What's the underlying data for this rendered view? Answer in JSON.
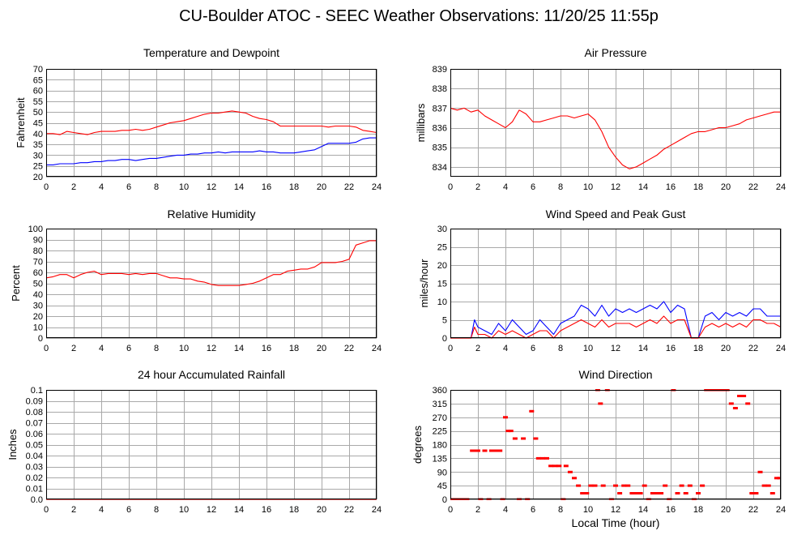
{
  "title": "CU-Boulder ATOC - SEEC Weather Observations: 11/20/25 11:55p",
  "x_axis_label": "Local Time (hour)",
  "colors": {
    "primary": "#ff0000",
    "secondary": "#0000ff",
    "grid": "#a9a9a9"
  },
  "chart_data": [
    {
      "id": "temperature",
      "type": "line",
      "title": "Temperature and Dewpoint",
      "ylabel": "Fahrenheit",
      "xlim": [
        0,
        24
      ],
      "ylim": [
        20,
        70
      ],
      "xticks": [
        "0",
        "2",
        "4",
        "6",
        "8",
        "10",
        "12",
        "14",
        "16",
        "18",
        "20",
        "22",
        "24"
      ],
      "yticks": [
        "20",
        "25",
        "30",
        "35",
        "40",
        "45",
        "50",
        "55",
        "60",
        "65",
        "70"
      ],
      "series": [
        {
          "color": "#ff0000",
          "x": [
            0,
            0.5,
            1,
            1.5,
            2,
            2.5,
            3,
            3.5,
            4,
            4.5,
            5,
            5.5,
            6,
            6.5,
            7,
            7.5,
            8,
            8.5,
            9,
            9.5,
            10,
            10.5,
            11,
            11.5,
            12,
            12.5,
            13,
            13.5,
            14,
            14.5,
            15,
            15.5,
            16,
            16.5,
            17,
            17.5,
            18,
            18.5,
            19,
            19.5,
            20,
            20.5,
            21,
            21.5,
            22,
            22.5,
            23,
            23.5,
            24
          ],
          "values": [
            40,
            40,
            39.5,
            41,
            40.5,
            40,
            39.5,
            40.5,
            41,
            41,
            41,
            41.5,
            41.5,
            42,
            41.5,
            42,
            43,
            44,
            45,
            45.5,
            46,
            47,
            48,
            49,
            49.5,
            49.5,
            50,
            50.5,
            50,
            49.5,
            48,
            47,
            46.5,
            45.5,
            43.5,
            43.5,
            43.5,
            43.5,
            43.5,
            43.5,
            43.5,
            43,
            43.5,
            43.5,
            43.5,
            43,
            41.5,
            41,
            40.5
          ]
        },
        {
          "color": "#0000ff",
          "x": [
            0,
            0.5,
            1,
            1.5,
            2,
            2.5,
            3,
            3.5,
            4,
            4.5,
            5,
            5.5,
            6,
            6.5,
            7,
            7.5,
            8,
            8.5,
            9,
            9.5,
            10,
            10.5,
            11,
            11.5,
            12,
            12.5,
            13,
            13.5,
            14,
            14.5,
            15,
            15.5,
            16,
            16.5,
            17,
            17.5,
            18,
            18.5,
            19,
            19.5,
            20,
            20.5,
            21,
            21.5,
            22,
            22.5,
            23,
            23.5,
            24
          ],
          "values": [
            25.5,
            25.5,
            26,
            26,
            26,
            26.5,
            26.5,
            27,
            27,
            27.5,
            27.5,
            28,
            28,
            27.5,
            28,
            28.5,
            28.5,
            29,
            29.5,
            30,
            30,
            30.5,
            30.5,
            31,
            31,
            31.5,
            31,
            31.5,
            31.5,
            31.5,
            31.5,
            32,
            31.5,
            31.5,
            31,
            31,
            31,
            31.5,
            32,
            32.5,
            34,
            35.5,
            35.5,
            35.5,
            35.5,
            36,
            37.5,
            38,
            38
          ]
        }
      ]
    },
    {
      "id": "pressure",
      "type": "line",
      "title": "Air Pressure",
      "ylabel": "millibars",
      "xlim": [
        0,
        24
      ],
      "ylim": [
        833.5,
        839
      ],
      "xticks": [
        "0",
        "2",
        "4",
        "6",
        "8",
        "10",
        "12",
        "14",
        "16",
        "18",
        "20",
        "22",
        "24"
      ],
      "yticks": [
        "834",
        "835",
        "836",
        "837",
        "838",
        "839"
      ],
      "series": [
        {
          "color": "#ff0000",
          "x": [
            0,
            0.5,
            1,
            1.5,
            2,
            2.5,
            3,
            3.5,
            4,
            4.5,
            5,
            5.5,
            6,
            6.5,
            7,
            7.5,
            8,
            8.5,
            9,
            9.5,
            10,
            10.5,
            11,
            11.5,
            12,
            12.5,
            13,
            13.5,
            14,
            14.5,
            15,
            15.5,
            16,
            16.5,
            17,
            17.5,
            18,
            18.5,
            19,
            19.5,
            20,
            20.5,
            21,
            21.5,
            22,
            22.5,
            23,
            23.5,
            24
          ],
          "values": [
            837,
            836.9,
            837,
            836.8,
            836.9,
            836.6,
            836.4,
            836.2,
            836,
            836.3,
            836.9,
            836.7,
            836.3,
            836.3,
            836.4,
            836.5,
            836.6,
            836.6,
            836.5,
            836.6,
            836.7,
            836.4,
            835.8,
            835,
            834.5,
            834.1,
            833.9,
            834,
            834.2,
            834.4,
            834.6,
            834.9,
            835.1,
            835.3,
            835.5,
            835.7,
            835.8,
            835.8,
            835.9,
            836,
            836,
            836.1,
            836.2,
            836.4,
            836.5,
            836.6,
            836.7,
            836.8,
            836.8
          ]
        }
      ]
    },
    {
      "id": "humidity",
      "type": "line",
      "title": "Relative Humidity",
      "ylabel": "Percent",
      "xlim": [
        0,
        24
      ],
      "ylim": [
        0,
        100
      ],
      "xticks": [
        "0",
        "2",
        "4",
        "6",
        "8",
        "10",
        "12",
        "14",
        "16",
        "18",
        "20",
        "22",
        "24"
      ],
      "yticks": [
        "0",
        "10",
        "20",
        "30",
        "40",
        "50",
        "60",
        "70",
        "80",
        "90",
        "100"
      ],
      "series": [
        {
          "color": "#ff0000",
          "x": [
            0,
            0.5,
            1,
            1.5,
            2,
            2.5,
            3,
            3.5,
            4,
            4.5,
            5,
            5.5,
            6,
            6.5,
            7,
            7.5,
            8,
            8.5,
            9,
            9.5,
            10,
            10.5,
            11,
            11.5,
            12,
            12.5,
            13,
            13.5,
            14,
            14.5,
            15,
            15.5,
            16,
            16.5,
            17,
            17.5,
            18,
            18.5,
            19,
            19.5,
            20,
            20.5,
            21,
            21.5,
            22,
            22.5,
            23,
            23.5,
            24
          ],
          "values": [
            55,
            56,
            58,
            58,
            55,
            58,
            60,
            61,
            58,
            59,
            59,
            59,
            58,
            59,
            58,
            59,
            59,
            57,
            55,
            55,
            54,
            54,
            52,
            51,
            49,
            48,
            48,
            48,
            48,
            49,
            50,
            52,
            55,
            58,
            58,
            61,
            62,
            63,
            63,
            65,
            69,
            69,
            69,
            70,
            72,
            85,
            87,
            89,
            89
          ]
        }
      ]
    },
    {
      "id": "wind-speed",
      "type": "line",
      "title": "Wind Speed and Peak Gust",
      "ylabel": "miles/hour",
      "xlim": [
        0,
        24
      ],
      "ylim": [
        0,
        30
      ],
      "xticks": [
        "0",
        "2",
        "4",
        "6",
        "8",
        "10",
        "12",
        "14",
        "16",
        "18",
        "20",
        "22",
        "24"
      ],
      "yticks": [
        "0",
        "5",
        "10",
        "15",
        "20",
        "25",
        "30"
      ],
      "series": [
        {
          "color": "#0000ff",
          "x": [
            0,
            0.5,
            1,
            1.5,
            1.75,
            2,
            2.5,
            3,
            3.5,
            4,
            4.5,
            5,
            5.5,
            6,
            6.5,
            7,
            7.5,
            8,
            8.5,
            9,
            9.5,
            10,
            10.5,
            11,
            11.5,
            12,
            12.5,
            13,
            13.5,
            14,
            14.5,
            15,
            15.5,
            16,
            16.5,
            17,
            17.5,
            18,
            18.5,
            19,
            19.5,
            20,
            20.5,
            21,
            21.5,
            22,
            22.5,
            23,
            23.5,
            24
          ],
          "values": [
            0,
            0,
            0,
            0,
            5,
            3,
            2,
            1,
            4,
            2,
            5,
            3,
            1,
            2,
            5,
            3,
            1,
            4,
            5,
            6,
            9,
            8,
            6,
            9,
            6,
            8,
            7,
            8,
            7,
            8,
            9,
            8,
            10,
            7,
            9,
            8,
            0,
            0,
            6,
            7,
            5,
            7,
            6,
            7,
            6,
            8,
            8,
            6,
            6,
            6
          ]
        },
        {
          "color": "#ff0000",
          "x": [
            0,
            0.5,
            1,
            1.5,
            1.75,
            2,
            2.5,
            3,
            3.5,
            4,
            4.5,
            5,
            5.5,
            6,
            6.5,
            7,
            7.5,
            8,
            8.5,
            9,
            9.5,
            10,
            10.5,
            11,
            11.5,
            12,
            12.5,
            13,
            13.5,
            14,
            14.5,
            15,
            15.5,
            16,
            16.5,
            17,
            17.5,
            18,
            18.5,
            19,
            19.5,
            20,
            20.5,
            21,
            21.5,
            22,
            22.5,
            23,
            23.5,
            24
          ],
          "values": [
            0,
            0,
            0,
            0,
            3,
            1,
            1,
            0,
            2,
            1,
            2,
            1,
            0,
            1,
            2,
            2,
            0,
            2,
            3,
            4,
            5,
            4,
            3,
            5,
            3,
            4,
            4,
            4,
            3,
            4,
            5,
            4,
            6,
            4,
            5,
            5,
            0,
            0,
            3,
            4,
            3,
            4,
            3,
            4,
            3,
            5,
            5,
            4,
            4,
            3
          ]
        }
      ]
    },
    {
      "id": "rainfall",
      "type": "line",
      "title": "24 hour Accumulated Rainfall",
      "ylabel": "Inches",
      "xlim": [
        0,
        24
      ],
      "ylim": [
        0,
        0.1
      ],
      "xticks": [
        "0",
        "2",
        "4",
        "6",
        "8",
        "10",
        "12",
        "14",
        "16",
        "18",
        "20",
        "22",
        "24"
      ],
      "yticks": [
        "0.0",
        "0.01",
        "0.02",
        "0.03",
        "0.04",
        "0.05",
        "0.06",
        "0.07",
        "0.08",
        "0.09",
        "0.1"
      ],
      "series": [
        {
          "color": "#ff0000",
          "x": [
            0,
            24
          ],
          "values": [
            0,
            0
          ]
        }
      ]
    },
    {
      "id": "wind-direction",
      "type": "scatter",
      "title": "Wind Direction",
      "ylabel": "degrees",
      "xlim": [
        0,
        24
      ],
      "ylim": [
        0,
        360
      ],
      "xticks": [
        "0",
        "2",
        "4",
        "6",
        "8",
        "10",
        "12",
        "14",
        "16",
        "18",
        "20",
        "22",
        "24"
      ],
      "yticks": [
        "0",
        "45",
        "90",
        "135",
        "180",
        "225",
        "270",
        "315",
        "360"
      ],
      "series": [
        {
          "color": "#ff0000",
          "x": [
            0.1,
            0.3,
            0.6,
            0.9,
            1.2,
            1.6,
            1.8,
            2.0,
            2.2,
            2.5,
            2.8,
            3.0,
            3.3,
            3.6,
            3.8,
            4.0,
            4.2,
            4.4,
            4.7,
            5.0,
            5.3,
            5.6,
            5.9,
            6.2,
            6.4,
            6.7,
            7.0,
            7.3,
            7.6,
            7.9,
            8.2,
            8.4,
            8.7,
            9.0,
            9.3,
            9.6,
            9.9,
            10.2,
            10.5,
            10.7,
            10.9,
            11.1,
            11.4,
            11.7,
            12.0,
            12.3,
            12.6,
            12.9,
            13.2,
            13.5,
            13.8,
            14.1,
            14.4,
            14.7,
            15.0,
            15.3,
            15.6,
            15.9,
            16.2,
            16.5,
            16.8,
            17.1,
            17.4,
            17.7,
            18.0,
            18.3,
            18.6,
            18.9,
            19.2,
            19.5,
            19.8,
            20.1,
            20.4,
            20.7,
            21.0,
            21.3,
            21.6,
            21.9,
            22.2,
            22.5,
            22.8,
            23.1,
            23.4,
            23.7,
            23.9
          ],
          "values": [
            0,
            0,
            0,
            0,
            0,
            160,
            160,
            160,
            0,
            160,
            0,
            160,
            160,
            160,
            0,
            270,
            225,
            225,
            200,
            0,
            200,
            0,
            290,
            200,
            135,
            135,
            135,
            110,
            110,
            110,
            0,
            110,
            90,
            70,
            45,
            20,
            20,
            45,
            45,
            360,
            315,
            45,
            360,
            0,
            45,
            20,
            45,
            45,
            20,
            20,
            20,
            45,
            0,
            20,
            20,
            20,
            45,
            0,
            360,
            20,
            45,
            20,
            45,
            0,
            20,
            45,
            360,
            360,
            360,
            360,
            360,
            360,
            315,
            300,
            340,
            340,
            315,
            20,
            20,
            90,
            45,
            45,
            20,
            70,
            70
          ]
        }
      ]
    }
  ]
}
